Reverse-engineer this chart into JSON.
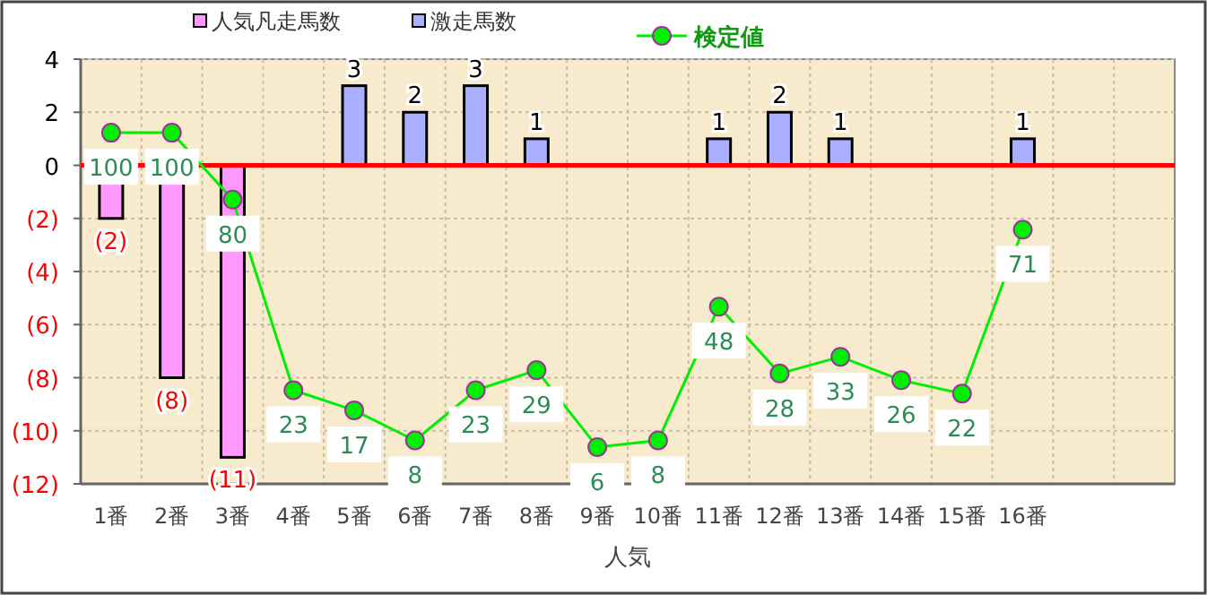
{
  "chart_data": {
    "type": "bar",
    "stacked": true,
    "xlabel": "人気",
    "categories": [
      "1番",
      "2番",
      "3番",
      "4番",
      "5番",
      "6番",
      "7番",
      "8番",
      "9番",
      "10番",
      "11番",
      "12番",
      "13番",
      "14番",
      "15番",
      "16番",
      null,
      null
    ],
    "series": [
      {
        "name": "人気凡走馬数",
        "color": "#ff99ff",
        "values": [
          -2,
          -8,
          -11,
          null,
          null,
          null,
          null,
          null,
          null,
          null,
          null,
          null,
          null,
          null,
          null,
          null,
          null,
          null
        ],
        "value_labels": [
          "(2)",
          "(8)",
          "(11)",
          null,
          null,
          null,
          null,
          null,
          null,
          null,
          null,
          null,
          null,
          null,
          null,
          null,
          null,
          null
        ]
      },
      {
        "name": "激走馬数",
        "color": "#aab0ff",
        "values": [
          null,
          null,
          null,
          null,
          3,
          2,
          3,
          1,
          null,
          null,
          1,
          2,
          1,
          null,
          null,
          1,
          null,
          null
        ],
        "value_labels": [
          null,
          null,
          null,
          null,
          "3",
          "2",
          "3",
          "1",
          null,
          null,
          "1",
          "2",
          "1",
          null,
          null,
          "1",
          null,
          null
        ]
      },
      {
        "name": "検定値",
        "type": "line",
        "axis": "y2",
        "color": "#00ee00",
        "values": [
          100,
          100,
          80,
          23,
          17,
          8,
          23,
          29,
          6,
          8,
          48,
          28,
          33,
          26,
          22,
          71,
          null,
          null
        ],
        "value_labels": [
          "100",
          "100",
          "80",
          "23",
          "17",
          "8",
          "23",
          "29",
          "6",
          "8",
          "48",
          "28",
          "33",
          "26",
          "22",
          "71",
          null,
          null
        ]
      }
    ],
    "ylim": [
      -12,
      4
    ],
    "yticks": [
      4,
      2,
      0,
      {
        "value": -2,
        "label": "(2)"
      },
      {
        "value": -4,
        "label": "(4)"
      },
      {
        "value": -6,
        "label": "(6)"
      },
      {
        "value": -8,
        "label": "(8)"
      },
      {
        "value": -10,
        "label": "(10)"
      },
      {
        "value": -12,
        "label": "(12)"
      }
    ],
    "y2lim": [
      -5,
      122
    ],
    "ref_lines": [
      {
        "axis": "y",
        "value": 0,
        "color": "#ff0000"
      }
    ],
    "grid": true,
    "legend": "top",
    "marker": "circle"
  }
}
